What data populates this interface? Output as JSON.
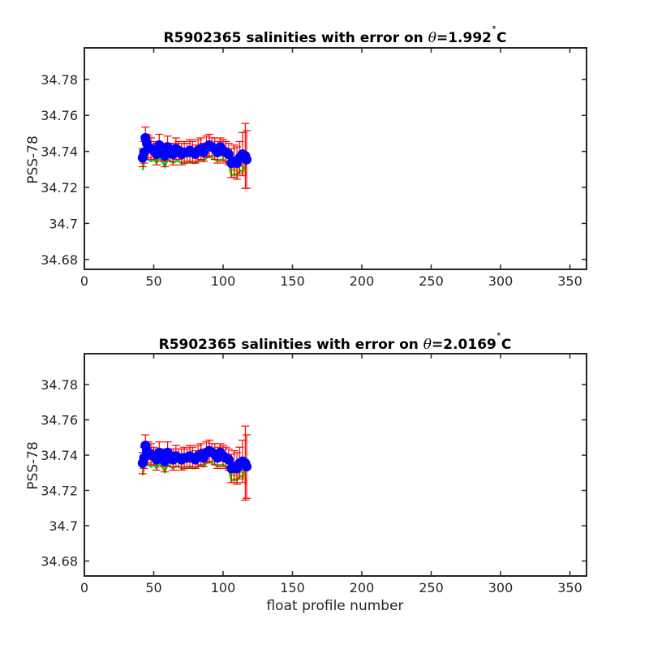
{
  "chart_data": [
    {
      "type": "scatter",
      "title_prefix": "R5902365 salinities with error on ",
      "theta_symbol": "θ",
      "theta_value": "=1.992",
      "degree_symbol": "˚",
      "unit": "C",
      "xlabel": "",
      "ylabel": "PSS-78",
      "xlim": [
        0,
        362
      ],
      "ylim": [
        34.6745,
        34.7975
      ],
      "xticks": [
        0,
        50,
        100,
        150,
        200,
        250,
        300,
        350
      ],
      "yticks": [
        34.68,
        34.7,
        34.72,
        34.74,
        34.76,
        34.78
      ],
      "ytick_labels": [
        "34.68",
        "34.7",
        "34.72",
        "34.74",
        "34.76",
        "34.78"
      ],
      "colors": {
        "points": "#0000ff",
        "error_bars": "#ff0000",
        "line": "#00e000",
        "fill": "#c9a400"
      },
      "x": [
        42,
        43,
        44,
        45,
        46,
        48,
        50,
        52,
        54,
        56,
        58,
        60,
        62,
        64,
        66,
        68,
        70,
        72,
        74,
        76,
        78,
        80,
        82,
        84,
        86,
        88,
        90,
        92,
        94,
        96,
        98,
        100,
        102,
        104,
        106,
        108,
        110,
        112,
        114,
        116,
        117
      ],
      "y": [
        34.7365,
        34.7395,
        34.7475,
        34.7445,
        34.7425,
        34.7415,
        34.7405,
        34.7385,
        34.7435,
        34.7395,
        34.7375,
        34.7425,
        34.7395,
        34.7385,
        34.7415,
        34.7405,
        34.7385,
        34.7395,
        34.7395,
        34.7405,
        34.7395,
        34.7385,
        34.7405,
        34.7415,
        34.7395,
        34.7425,
        34.7435,
        34.7425,
        34.7415,
        34.7395,
        34.7425,
        34.7405,
        34.7395,
        34.7385,
        34.7335,
        34.7345,
        34.7335,
        34.7365,
        34.7385,
        34.7375,
        34.7355
      ],
      "err": [
        0.005,
        0.006,
        0.006,
        0.005,
        0.006,
        0.006,
        0.005,
        0.006,
        0.006,
        0.005,
        0.006,
        0.006,
        0.005,
        0.006,
        0.006,
        0.005,
        0.006,
        0.006,
        0.005,
        0.006,
        0.006,
        0.005,
        0.006,
        0.006,
        0.005,
        0.006,
        0.006,
        0.005,
        0.006,
        0.006,
        0.005,
        0.006,
        0.006,
        0.006,
        0.008,
        0.009,
        0.009,
        0.009,
        0.012,
        0.018,
        0.016
      ],
      "line_y": [
        34.7295,
        34.7335,
        34.7385,
        34.7365,
        34.7355,
        34.7345,
        34.7355,
        34.7335,
        34.7365,
        34.7345,
        34.7315,
        34.7355,
        34.7345,
        34.7335,
        34.7345,
        34.7345,
        34.7335,
        34.7335,
        34.7335,
        34.7345,
        34.7335,
        34.7335,
        34.7345,
        34.7355,
        34.7345,
        34.7365,
        34.7375,
        34.7365,
        34.7355,
        34.7345,
        34.7355,
        34.7355,
        34.7345,
        34.7335,
        34.7265,
        34.7275,
        34.7265,
        34.7295,
        34.7285,
        34.7325,
        34.7335
      ]
    },
    {
      "type": "scatter",
      "title_prefix": "R5902365 salinities with error on ",
      "theta_symbol": "θ",
      "theta_value": "=2.0169",
      "degree_symbol": "˚",
      "unit": "C",
      "xlabel": "float profile number",
      "ylabel": "PSS-78",
      "xlim": [
        0,
        362
      ],
      "ylim": [
        34.6715,
        34.7975
      ],
      "xticks": [
        0,
        50,
        100,
        150,
        200,
        250,
        300,
        350
      ],
      "yticks": [
        34.68,
        34.7,
        34.72,
        34.74,
        34.76,
        34.78
      ],
      "ytick_labels": [
        "34.68",
        "34.7",
        "34.72",
        "34.74",
        "34.76",
        "34.78"
      ],
      "colors": {
        "points": "#0000ff",
        "error_bars": "#ff0000",
        "line": "#00e000",
        "fill": "#c9a400"
      },
      "x": [
        42,
        43,
        44,
        45,
        46,
        48,
        50,
        52,
        54,
        56,
        58,
        60,
        62,
        64,
        66,
        68,
        70,
        72,
        74,
        76,
        78,
        80,
        82,
        84,
        86,
        88,
        90,
        92,
        94,
        96,
        98,
        100,
        102,
        104,
        106,
        108,
        110,
        112,
        114,
        116,
        117
      ],
      "y": [
        34.7355,
        34.7385,
        34.7455,
        34.7425,
        34.7415,
        34.7405,
        34.7395,
        34.7375,
        34.7415,
        34.7385,
        34.7365,
        34.7415,
        34.7385,
        34.7375,
        34.7395,
        34.7385,
        34.7375,
        34.7385,
        34.7385,
        34.7395,
        34.7385,
        34.7375,
        34.7395,
        34.7405,
        34.7385,
        34.7415,
        34.7425,
        34.7415,
        34.7405,
        34.7385,
        34.7415,
        34.7395,
        34.7385,
        34.7375,
        34.7325,
        34.7335,
        34.7325,
        34.7355,
        34.7365,
        34.7355,
        34.7335
      ],
      "err": [
        0.006,
        0.006,
        0.006,
        0.005,
        0.006,
        0.006,
        0.005,
        0.006,
        0.006,
        0.005,
        0.006,
        0.006,
        0.005,
        0.006,
        0.006,
        0.005,
        0.006,
        0.006,
        0.005,
        0.006,
        0.006,
        0.005,
        0.006,
        0.006,
        0.005,
        0.006,
        0.006,
        0.005,
        0.006,
        0.006,
        0.005,
        0.006,
        0.006,
        0.006,
        0.008,
        0.009,
        0.009,
        0.009,
        0.012,
        0.021,
        0.018
      ],
      "line_y": [
        34.7285,
        34.7325,
        34.7375,
        34.7355,
        34.7345,
        34.7335,
        34.7345,
        34.7325,
        34.7355,
        34.7335,
        34.7305,
        34.7345,
        34.7335,
        34.7325,
        34.7335,
        34.7335,
        34.7325,
        34.7325,
        34.7325,
        34.7335,
        34.7325,
        34.7325,
        34.7335,
        34.7345,
        34.7335,
        34.7355,
        34.7365,
        34.7355,
        34.7345,
        34.7335,
        34.7345,
        34.7345,
        34.7335,
        34.7325,
        34.7255,
        34.7265,
        34.7255,
        34.7285,
        34.7275,
        34.7315,
        34.7325
      ]
    }
  ]
}
